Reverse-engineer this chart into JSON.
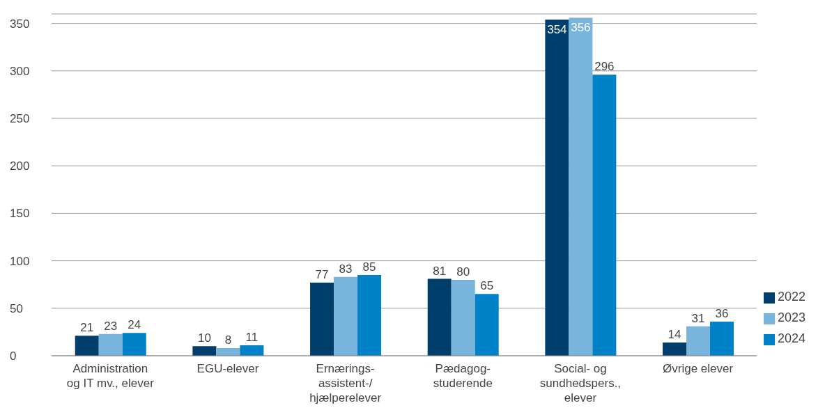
{
  "chart_data": {
    "type": "bar",
    "categories": [
      "Administration\nog IT mv., elever",
      "EGU-elever",
      "Ernærings-\nassistent-/\nhjælperelever",
      "Pædagog-\nstuderende",
      "Social- og\nsundhedspers.,\nelever",
      "Øvrige elever"
    ],
    "series": [
      {
        "name": "2022",
        "color": "#003f6b",
        "values": [
          21,
          10,
          77,
          81,
          354,
          14
        ]
      },
      {
        "name": "2023",
        "color": "#78b4dc",
        "values": [
          23,
          8,
          83,
          80,
          356,
          31
        ]
      },
      {
        "name": "2024",
        "color": "#0082c8",
        "values": [
          24,
          11,
          85,
          65,
          296,
          36
        ]
      }
    ],
    "ylim": [
      0,
      360
    ],
    "yticks": [
      0,
      50,
      100,
      150,
      200,
      250,
      300,
      350
    ],
    "grid": "y",
    "legend": "right",
    "data_labels": true
  }
}
